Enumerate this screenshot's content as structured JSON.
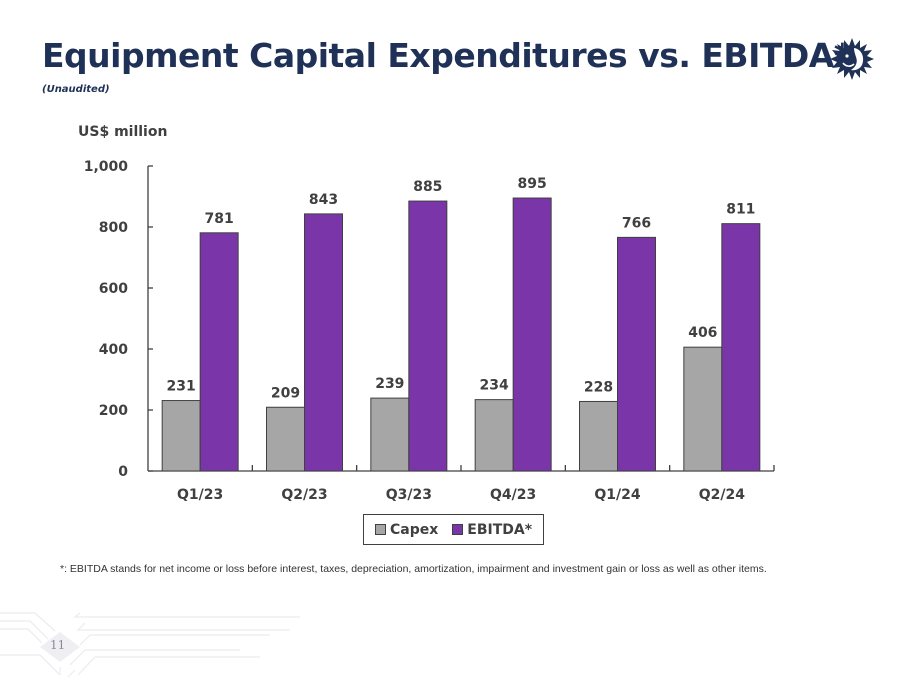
{
  "header": {
    "title": "Equipment Capital Expenditures vs. EBITDA*",
    "subtitle": "(Unaudited)",
    "logo_icon": "sun-face-logo-icon"
  },
  "colors": {
    "title": "#1f3156",
    "capex": "#a6a6a6",
    "ebitda": "#7a35a8",
    "axis": "#404040"
  },
  "chart_data": {
    "type": "bar",
    "title": "Equipment Capital Expenditures vs. EBITDA*",
    "ylabel": "US$ million",
    "xlabel": "",
    "categories": [
      "Q1/23",
      "Q2/23",
      "Q3/23",
      "Q4/23",
      "Q1/24",
      "Q2/24"
    ],
    "series": [
      {
        "name": "Capex",
        "color": "#a6a6a6",
        "values": [
          231,
          209,
          239,
          234,
          228,
          406
        ]
      },
      {
        "name": "EBITDA*",
        "color": "#7a35a8",
        "values": [
          781,
          843,
          885,
          895,
          766,
          811
        ]
      }
    ],
    "ylim": [
      0,
      1000
    ],
    "yticks": [
      0,
      200,
      400,
      600,
      800,
      1000
    ],
    "ytick_labels": [
      "0",
      "200",
      "400",
      "600",
      "800",
      "1,000"
    ],
    "grid": false,
    "legend_position": "bottom-center",
    "data_labels": true
  },
  "footnote": "*: EBITDA stands for net income or loss before interest, taxes, depreciation, amortization, impairment and investment gain or loss as well as other items.",
  "page_number": "11"
}
